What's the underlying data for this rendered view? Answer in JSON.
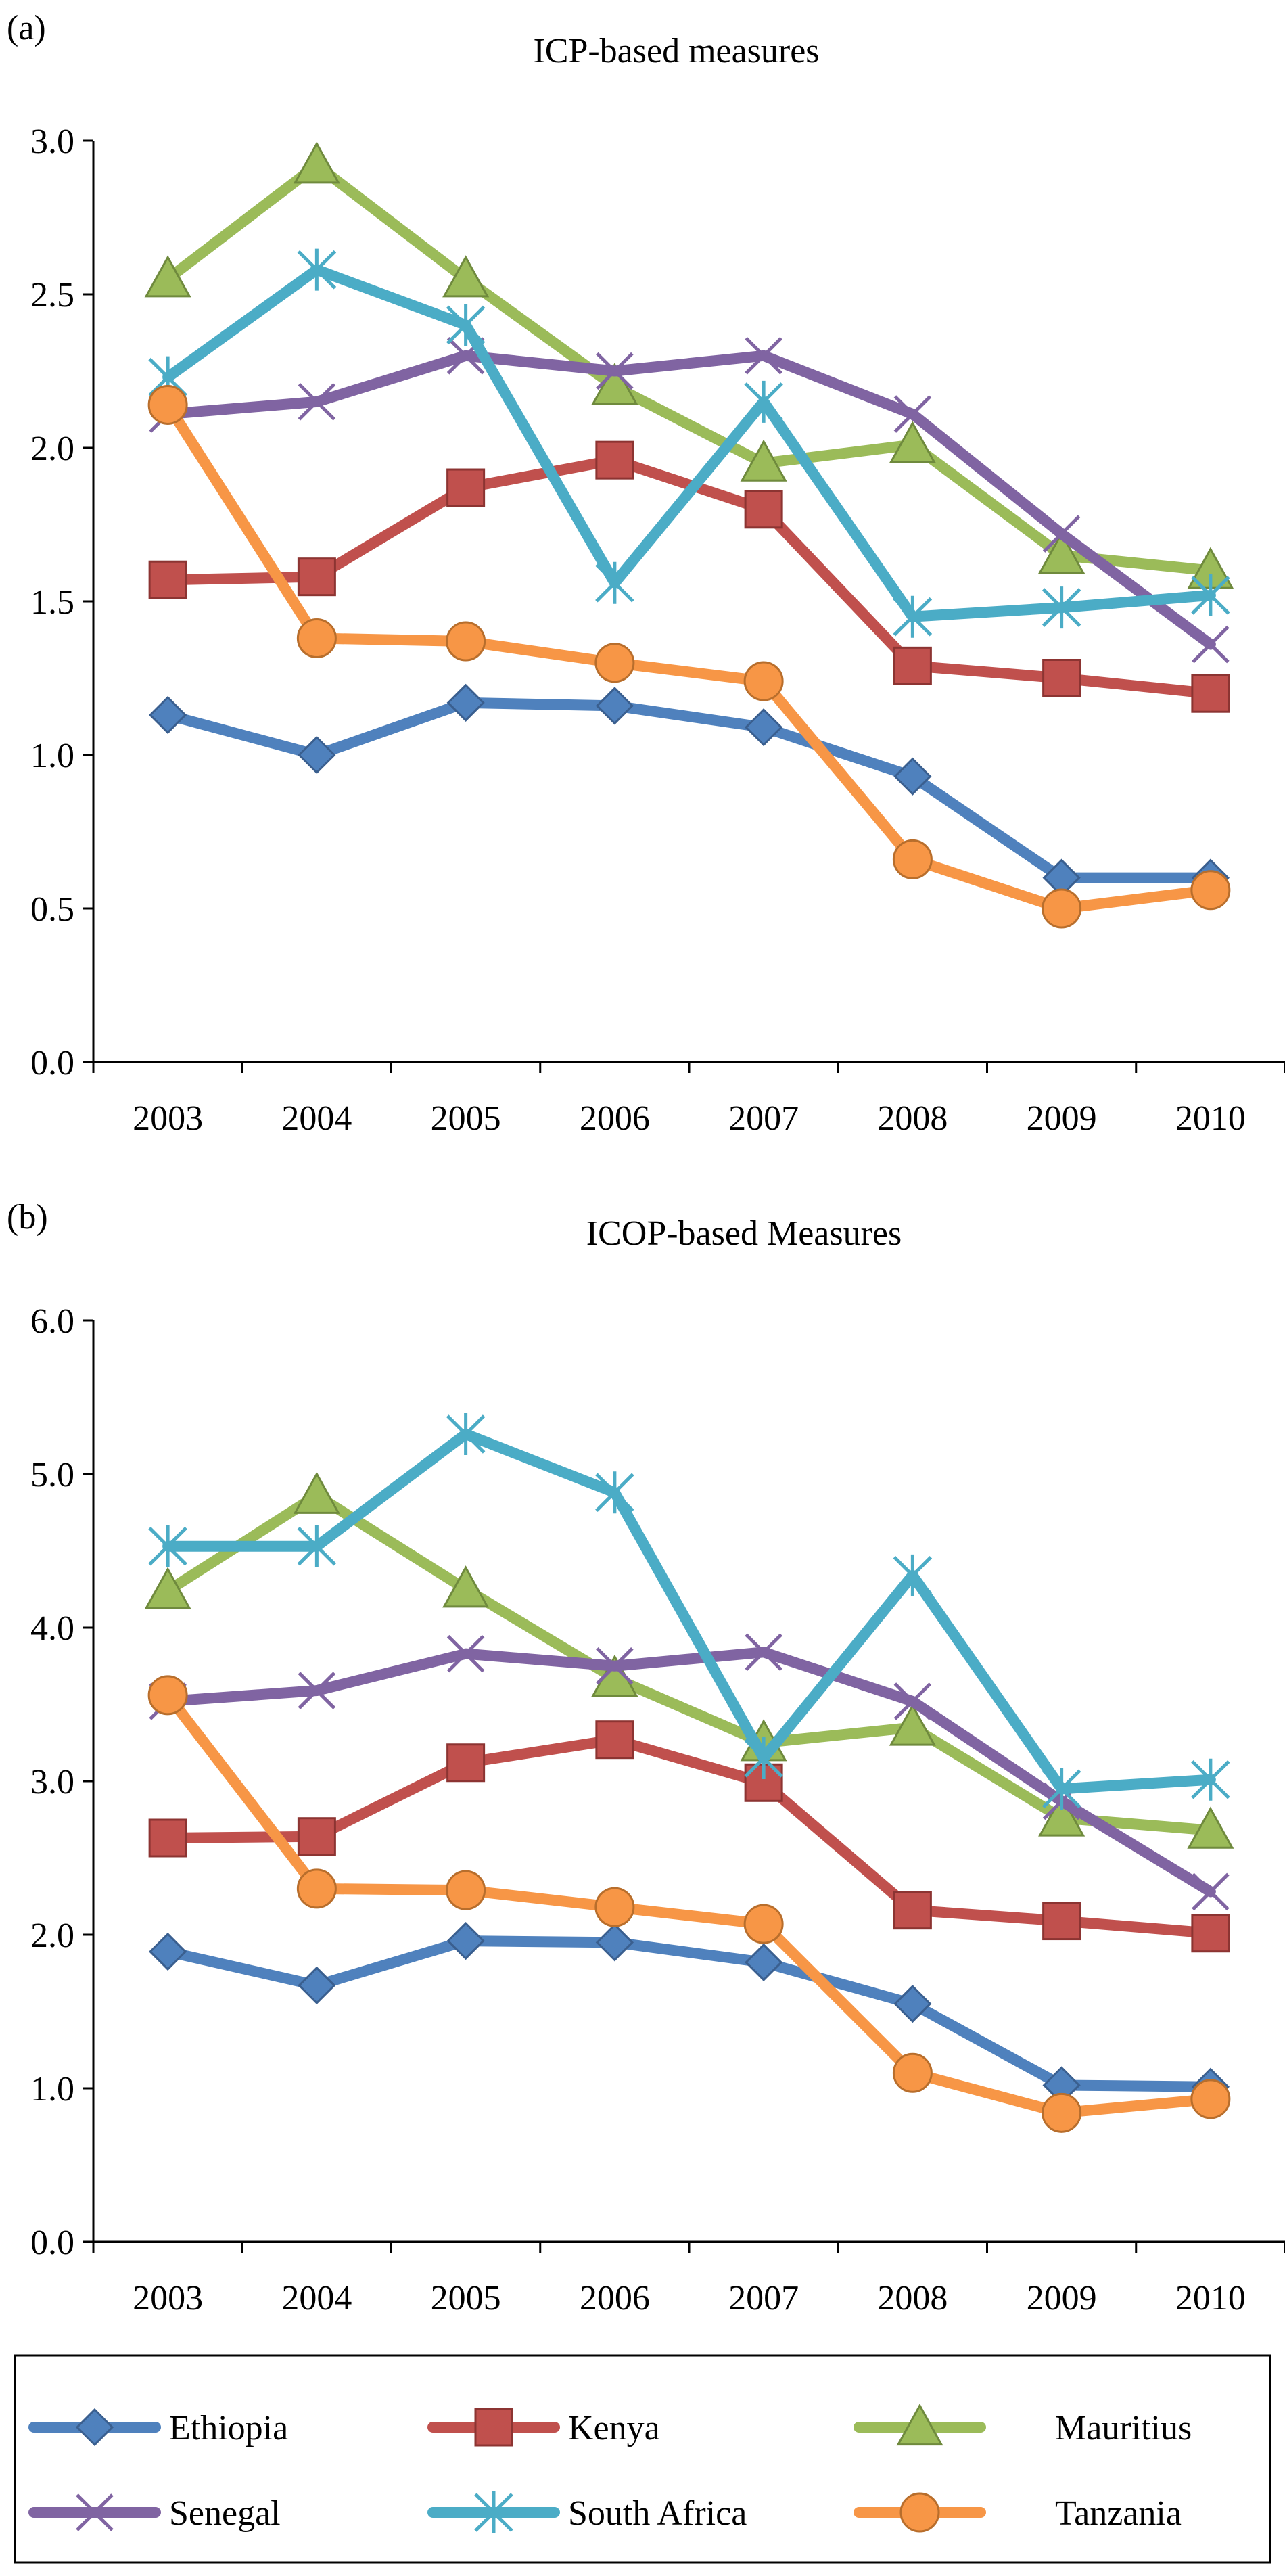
{
  "legend": [
    {
      "name": "Ethiopia",
      "marker": "diamond-icon",
      "color": "#4f81bd"
    },
    {
      "name": "Kenya",
      "marker": "square-icon",
      "color": "#c0504d"
    },
    {
      "name": "Mauritius",
      "marker": "triangle-icon",
      "color": "#9bbb59"
    },
    {
      "name": "Senegal",
      "marker": "x-cross-icon",
      "color": "#8064a2"
    },
    {
      "name": "South Africa",
      "marker": "asterisk-icon",
      "color": "#4bacc6"
    },
    {
      "name": "Tanzania",
      "marker": "circle-icon",
      "color": "#f79646"
    }
  ],
  "chart_data": [
    {
      "type": "line",
      "panel_label": "(a)",
      "title": "ICP-based measures",
      "x": [
        "2003",
        "2004",
        "2005",
        "2006",
        "2007",
        "2008",
        "2009",
        "2010"
      ],
      "ylim": [
        0,
        3
      ],
      "yticks": [
        "0.0",
        "0.5",
        "1.0",
        "1.5",
        "2.0",
        "2.5",
        "3.0"
      ],
      "grid": false,
      "series": [
        {
          "name": "Ethiopia",
          "values": [
            1.13,
            1.0,
            1.17,
            1.16,
            1.09,
            0.93,
            0.6,
            0.6
          ]
        },
        {
          "name": "Kenya",
          "values": [
            1.57,
            1.58,
            1.87,
            1.96,
            1.8,
            1.29,
            1.25,
            1.2
          ]
        },
        {
          "name": "Mauritius",
          "values": [
            2.55,
            2.92,
            2.55,
            2.2,
            1.95,
            2.01,
            1.65,
            1.6
          ]
        },
        {
          "name": "Senegal",
          "values": [
            2.11,
            2.15,
            2.3,
            2.25,
            2.3,
            2.11,
            1.72,
            1.36
          ]
        },
        {
          "name": "South Africa",
          "values": [
            2.23,
            2.58,
            2.4,
            1.56,
            2.15,
            1.45,
            1.48,
            1.52
          ]
        },
        {
          "name": "Tanzania",
          "values": [
            2.14,
            1.38,
            1.37,
            1.3,
            1.24,
            0.66,
            0.5,
            0.56
          ]
        }
      ]
    },
    {
      "type": "line",
      "panel_label": "(b)",
      "title": "ICOP-based Measures",
      "x": [
        "2003",
        "2004",
        "2005",
        "2006",
        "2007",
        "2008",
        "2009",
        "2010"
      ],
      "ylim": [
        0,
        6
      ],
      "yticks": [
        "0.0",
        "1.0",
        "2.0",
        "3.0",
        "4.0",
        "5.0",
        "6.0"
      ],
      "grid": false,
      "series": [
        {
          "name": "Ethiopia",
          "values": [
            1.89,
            1.67,
            1.96,
            1.95,
            1.82,
            1.55,
            1.02,
            1.01
          ]
        },
        {
          "name": "Kenya",
          "values": [
            2.63,
            2.64,
            3.12,
            3.27,
            2.99,
            2.16,
            2.09,
            2.01
          ]
        },
        {
          "name": "Mauritius",
          "values": [
            4.24,
            4.86,
            4.25,
            3.67,
            3.25,
            3.35,
            2.76,
            2.68
          ]
        },
        {
          "name": "Senegal",
          "values": [
            3.52,
            3.59,
            3.83,
            3.75,
            3.84,
            3.52,
            2.87,
            2.28
          ]
        },
        {
          "name": "South Africa",
          "values": [
            4.53,
            4.53,
            5.26,
            4.88,
            3.15,
            4.34,
            2.95,
            3.01
          ]
        },
        {
          "name": "Tanzania",
          "values": [
            3.56,
            2.3,
            2.29,
            2.18,
            2.07,
            1.1,
            0.84,
            0.93
          ]
        }
      ]
    }
  ]
}
